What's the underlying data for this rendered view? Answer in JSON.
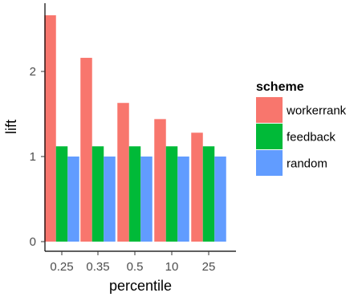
{
  "chart_data": {
    "type": "bar",
    "categories": [
      "0.25",
      "0.35",
      "0.5",
      "10",
      "25"
    ],
    "series": [
      {
        "name": "workerrank",
        "values": [
          2.66,
          2.16,
          1.63,
          1.44,
          1.28
        ],
        "color": "#F8766D"
      },
      {
        "name": "feedback",
        "values": [
          1.12,
          1.12,
          1.12,
          1.12,
          1.12
        ],
        "color": "#00BA38"
      },
      {
        "name": "random",
        "values": [
          1.0,
          1.0,
          1.0,
          1.0,
          1.0
        ],
        "color": "#619CFF"
      }
    ],
    "xlabel": "percentile",
    "ylabel": "lift",
    "yticks": [
      0,
      1,
      2
    ],
    "ylim": [
      0,
      2.8
    ],
    "legend_title": "scheme",
    "legend_position": "right",
    "grid": false
  }
}
